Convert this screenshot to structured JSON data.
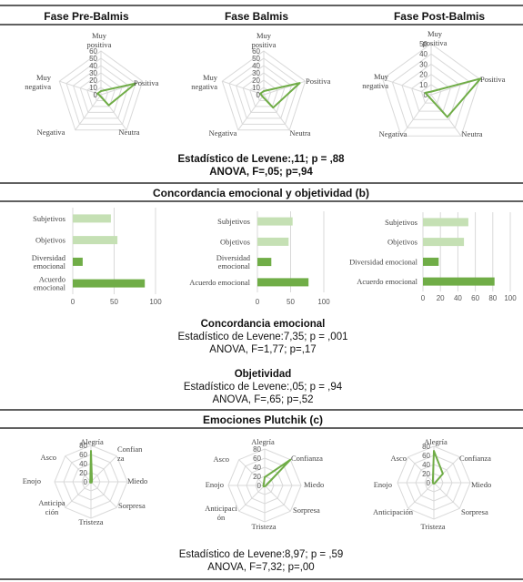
{
  "header": {
    "phases": [
      "Fase Pre-Balmis",
      "Fase Balmis",
      "Fase Post-Balmis"
    ]
  },
  "sections": {
    "concordancia_title": "Concordancia emocional y objetividad (b)",
    "plutchik_title": "Emociones Plutchik (c)"
  },
  "stats": {
    "a_line1": "Estadístico de Levene:,11; p = ,88",
    "a_line2": "ANOVA, F=,05; p=,94",
    "conc_heading": "Concordancia emocional",
    "conc_line1": "Estadístico de Levene:7,35; p = ,001",
    "conc_line2": "ANOVA, F=1,77; p=,17",
    "obj_heading": "Objetividad",
    "obj_line1": "Estadístico de Levene:,05; p = ,94",
    "obj_line2": "ANOVA, F=,65; p=,52",
    "c_line1": "Estadístico de Levene:8,97; p = ,59",
    "c_line2": "ANOVA, F=7,32; p=,00"
  },
  "colors": {
    "series_dark": "#70ad47",
    "series_light": "#c5e0b4",
    "grid": "#d9d9d9"
  },
  "chart_data": [
    {
      "type": "radar",
      "id": "valence-pre",
      "title": "Fase Pre-Balmis",
      "categories": [
        "Muy positiva",
        "Positiva",
        "Neutra",
        "Negativa",
        "Muy negativa"
      ],
      "values": [
        5,
        50,
        18,
        2,
        5
      ],
      "ticks": [
        "0",
        "10",
        "20",
        "30",
        "40",
        "50",
        "60"
      ],
      "rmax": 60
    },
    {
      "type": "radar",
      "id": "valence-bal",
      "title": "Fase Balmis",
      "categories": [
        "Muy positiva",
        "Positiva",
        "Neutra",
        "Negativa",
        "Muy negativa"
      ],
      "values": [
        5,
        52,
        22,
        3,
        5
      ],
      "ticks": [
        "0",
        "10",
        "20",
        "30",
        "40",
        "50",
        "60"
      ],
      "rmax": 60
    },
    {
      "type": "radar",
      "id": "valence-post",
      "title": "Fase Post-Balmis",
      "categories": [
        "Muy positiva",
        "Positiva",
        "Neutra",
        "Negativa",
        "Muy negativa"
      ],
      "values": [
        3,
        51,
        27,
        3,
        6
      ],
      "ticks": [
        "0",
        "10",
        "20",
        "30",
        "40",
        "50"
      ],
      "rmax": 50
    },
    {
      "type": "bar-horizontal",
      "id": "conc-pre",
      "categories": [
        [
          "Subjetivos"
        ],
        [
          "Objetivos"
        ],
        [
          "Diversidad",
          "emocional"
        ],
        [
          "Acuerdo",
          "emocional"
        ]
      ],
      "values": [
        46,
        54,
        12,
        87
      ],
      "xlim": [
        0,
        100
      ],
      "xticks": [
        "0",
        "50",
        "100"
      ]
    },
    {
      "type": "bar-horizontal",
      "id": "conc-bal",
      "categories": [
        [
          "Subjetivos"
        ],
        [
          "Objetivos"
        ],
        [
          "Diversidad",
          "emocional"
        ],
        [
          "Acuerdo emocional"
        ]
      ],
      "values": [
        53,
        47,
        21,
        77
      ],
      "xlim": [
        0,
        100
      ],
      "xticks": [
        "0",
        "50",
        "100"
      ]
    },
    {
      "type": "bar-horizontal",
      "id": "conc-post",
      "categories": [
        [
          "Subjetivos"
        ],
        [
          "Objetivos"
        ],
        [
          "Diversidad emocional"
        ],
        [
          "Acuerdo emocional"
        ]
      ],
      "values": [
        52,
        47,
        18,
        82
      ],
      "xlim": [
        0,
        100
      ],
      "xticks": [
        "0",
        "20",
        "40",
        "60",
        "80",
        "100"
      ]
    },
    {
      "type": "radar",
      "id": "plutchik-pre",
      "categories": [
        "Alegría",
        "Confianza",
        "Miedo",
        "Sorpresa",
        "Tristeza",
        "Anticipación",
        "Enojo",
        "Asco"
      ],
      "label_lines": [
        [
          "Alegría"
        ],
        [
          "Confian",
          "za"
        ],
        [
          "Miedo"
        ],
        [
          "Sorpresa"
        ],
        [
          "Tristeza"
        ],
        [
          "Anticipa",
          "ción"
        ],
        [
          "Enojo"
        ],
        [
          "Asco"
        ]
      ],
      "values": [
        68,
        3,
        2,
        2,
        2,
        2,
        2,
        2
      ],
      "ticks": [
        "0",
        "20",
        "40",
        "60",
        "80"
      ],
      "rmax": 80
    },
    {
      "type": "radar",
      "id": "plutchik-bal",
      "categories": [
        "Alegría",
        "Confianza",
        "Miedo",
        "Sorpresa",
        "Tristeza",
        "Anticipación",
        "Enojo",
        "Asco"
      ],
      "label_lines": [
        [
          "Alegría"
        ],
        [
          "Confianza"
        ],
        [
          "Miedo"
        ],
        [
          "Sorpresa"
        ],
        [
          "Tristeza"
        ],
        [
          "Anticipaci",
          "ón"
        ],
        [
          "Enojo"
        ],
        [
          "Asco"
        ]
      ],
      "values": [
        18,
        80,
        3,
        2,
        2,
        3,
        3,
        3
      ],
      "ticks": [
        "0",
        "20",
        "40",
        "60",
        "80"
      ],
      "rmax": 80
    },
    {
      "type": "radar",
      "id": "plutchik-post",
      "categories": [
        "Alegría",
        "Confianza",
        "Miedo",
        "Sorpresa",
        "Tristeza",
        "Anticipación",
        "Enojo",
        "Asco"
      ],
      "label_lines": [
        [
          "Alegría"
        ],
        [
          "Confianza"
        ],
        [
          "Miedo"
        ],
        [
          "Sorpresa"
        ],
        [
          "Tristeza"
        ],
        [
          "Anticipación"
        ],
        [
          "Enojo"
        ],
        [
          "Asco"
        ]
      ],
      "values": [
        70,
        28,
        3,
        2,
        2,
        2,
        2,
        3
      ],
      "ticks": [
        "0",
        "20",
        "40",
        "60",
        "80"
      ],
      "rmax": 80
    }
  ]
}
